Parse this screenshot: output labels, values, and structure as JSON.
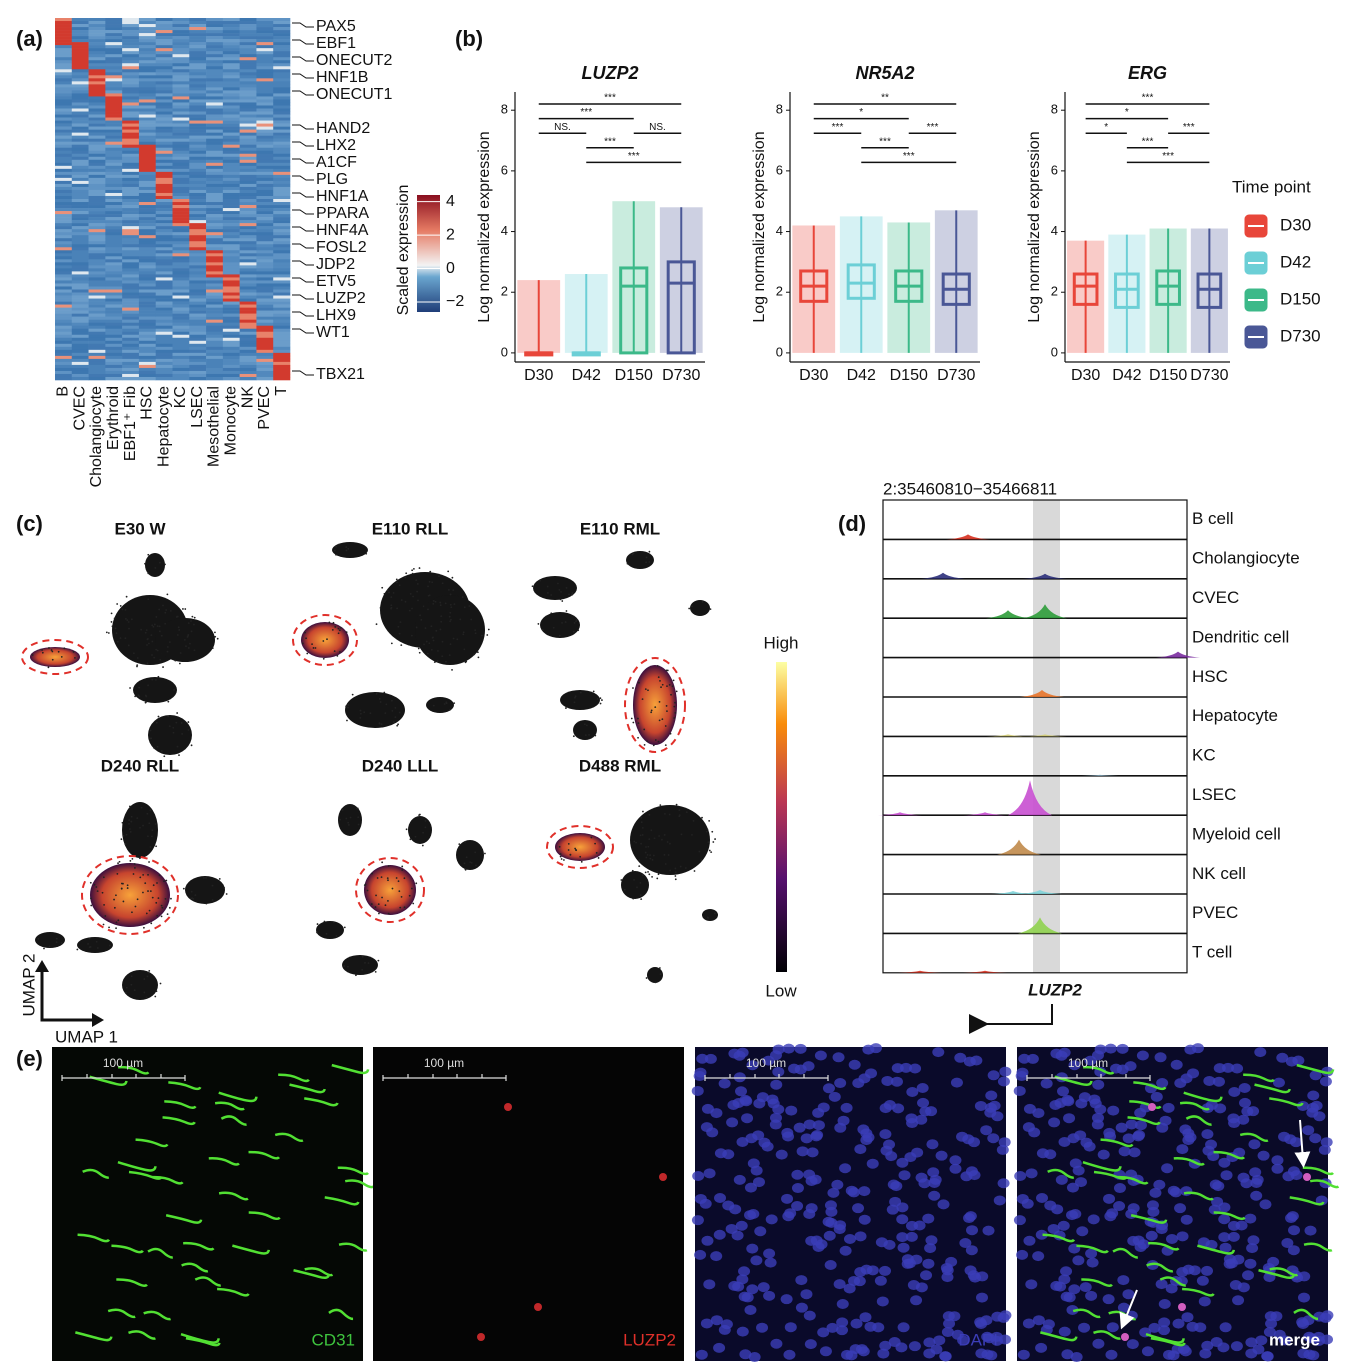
{
  "panel_a": {
    "label": "(a)",
    "genes": [
      "PAX5",
      "EBF1",
      "ONECUT2",
      "HNF1B",
      "ONECUT1",
      "HAND2",
      "LHX2",
      "A1CF",
      "PLG",
      "HNF1A",
      "PPARA",
      "HNF4A",
      "FOSL2",
      "JDP2",
      "ETV5",
      "LUZP2",
      "LHX9",
      "WT1",
      "TBX21"
    ],
    "cell_types": [
      "B",
      "CVEC",
      "Cholangiocyte",
      "Erythroid",
      "EBF1⁺ Fib",
      "HSC",
      "Hepatocyte",
      "KC",
      "LSEC",
      "Mesothelial",
      "Monocyte",
      "NK",
      "PVEC",
      "T"
    ],
    "colorbar": {
      "title": "Scaled expression",
      "ticks": [
        4,
        2,
        0,
        {
          "value": -2,
          "label": "−2"
        }
      ],
      "lim": [
        -2.6,
        4.4
      ]
    }
  },
  "panel_b": {
    "label": "(b)",
    "ylabel": "Log normalized expression",
    "categories": [
      "D30",
      "D42",
      "D150",
      "D730"
    ],
    "colors": [
      "#e8463a",
      "#6ccfd6",
      "#3cb989",
      "#4a5796"
    ],
    "ylim": [
      -0.3,
      8.6
    ],
    "yticks": [
      0,
      2,
      4,
      6,
      8
    ],
    "legend_title": "Time point",
    "charts": [
      {
        "title": "LUZP2",
        "boxes": [
          {
            "min": 0,
            "q1": 0,
            "median": 0,
            "q3": 0,
            "max": 2.4
          },
          {
            "min": 0,
            "q1": 0,
            "median": 0,
            "q3": 0,
            "max": 2.6
          },
          {
            "min": 0,
            "q1": 0,
            "median": 2.2,
            "q3": 2.8,
            "max": 5
          },
          {
            "min": 0,
            "q1": 0,
            "median": 2.3,
            "q3": 3,
            "max": 4.8
          }
        ],
        "comparisons": [
          {
            "pair": [
              "D30",
              "D730"
            ],
            "label": "***"
          },
          {
            "pair": [
              "D30",
              "D150"
            ],
            "label": "***"
          },
          {
            "pair": [
              "D30",
              "D42"
            ],
            "label": "NS."
          },
          {
            "pair": [
              "D150",
              "D730"
            ],
            "label": "NS."
          },
          {
            "pair": [
              "D42",
              "D150"
            ],
            "label": "***"
          },
          {
            "pair": [
              "D42",
              "D730"
            ],
            "label": "***"
          }
        ]
      },
      {
        "title": "NR5A2",
        "boxes": [
          {
            "min": 0,
            "q1": 1.7,
            "median": 2.2,
            "q3": 2.7,
            "max": 4.2
          },
          {
            "min": 0,
            "q1": 1.8,
            "median": 2.3,
            "q3": 2.9,
            "max": 4.5
          },
          {
            "min": 0,
            "q1": 1.7,
            "median": 2.2,
            "q3": 2.7,
            "max": 4.3
          },
          {
            "min": 0,
            "q1": 1.6,
            "median": 2.1,
            "q3": 2.6,
            "max": 4.7
          }
        ],
        "comparisons": [
          {
            "pair": [
              "D30",
              "D730"
            ],
            "label": "**"
          },
          {
            "pair": [
              "D30",
              "D150"
            ],
            "label": "*"
          },
          {
            "pair": [
              "D30",
              "D42"
            ],
            "label": "***"
          },
          {
            "pair": [
              "D150",
              "D730"
            ],
            "label": "***"
          },
          {
            "pair": [
              "D42",
              "D150"
            ],
            "label": "***"
          },
          {
            "pair": [
              "D42",
              "D730"
            ],
            "label": "***"
          }
        ]
      },
      {
        "title": "ERG",
        "boxes": [
          {
            "min": 0,
            "q1": 1.6,
            "median": 2.2,
            "q3": 2.6,
            "max": 3.7
          },
          {
            "min": 0,
            "q1": 1.5,
            "median": 2.1,
            "q3": 2.6,
            "max": 3.9
          },
          {
            "min": 0,
            "q1": 1.6,
            "median": 2.2,
            "q3": 2.7,
            "max": 4.1
          },
          {
            "min": 0,
            "q1": 1.5,
            "median": 2.1,
            "q3": 2.6,
            "max": 4.1
          }
        ],
        "comparisons": [
          {
            "pair": [
              "D30",
              "D730"
            ],
            "label": "***"
          },
          {
            "pair": [
              "D30",
              "D150"
            ],
            "label": "*"
          },
          {
            "pair": [
              "D30",
              "D42"
            ],
            "label": "*"
          },
          {
            "pair": [
              "D150",
              "D730"
            ],
            "label": "***"
          },
          {
            "pair": [
              "D42",
              "D150"
            ],
            "label": "***"
          },
          {
            "pair": [
              "D42",
              "D730"
            ],
            "label": "***"
          }
        ]
      }
    ]
  },
  "panel_c": {
    "label": "(c)",
    "samples": [
      "E30 W",
      "E110 RLL",
      "E110 RML",
      "D240 RLL",
      "D240 LLL",
      "D488 RML"
    ],
    "colorbar": {
      "high": "High",
      "low": "Low"
    },
    "axes": {
      "x": "UMAP 1",
      "y": "UMAP 2"
    }
  },
  "panel_d": {
    "label": "(d)",
    "region": "2:35460810−35466811",
    "tracks": [
      "B cell",
      "Cholangiocyte",
      "CVEC",
      "Dendritic cell",
      "HSC",
      "Hepatocyte",
      "KC",
      "LSEC",
      "Myeloid cell",
      "NK cell",
      "PVEC",
      "T cell"
    ],
    "gene": "LUZP2"
  },
  "panel_e": {
    "label": "(e)",
    "scale_bar": "100 µm",
    "channels": [
      "CD31",
      "LUZP2",
      "DAPI",
      "merge"
    ]
  }
}
